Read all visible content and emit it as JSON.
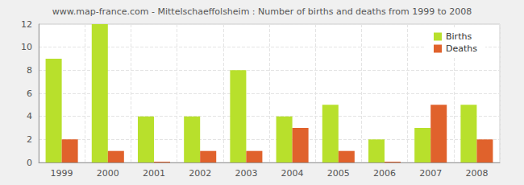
{
  "chart_data": {
    "type": "bar",
    "title": "www.map-france.com - Mittelschaeffolsheim : Number of births and deaths from 1999 to 2008",
    "categories": [
      "1999",
      "2000",
      "2001",
      "2002",
      "2003",
      "2004",
      "2005",
      "2006",
      "2007",
      "2008"
    ],
    "series": [
      {
        "name": "Births",
        "color": "#b8e02c",
        "values": [
          9,
          12,
          4,
          4,
          8,
          4,
          5,
          2,
          3,
          5
        ]
      },
      {
        "name": "Deaths",
        "color": "#e0622c",
        "values": [
          2,
          1,
          0,
          1,
          1,
          3,
          1,
          0,
          5,
          2
        ]
      }
    ],
    "ylim": [
      0,
      12
    ],
    "yticks": [
      0,
      2,
      4,
      6,
      8,
      10,
      12
    ],
    "grid": true,
    "legend": "top-right"
  }
}
